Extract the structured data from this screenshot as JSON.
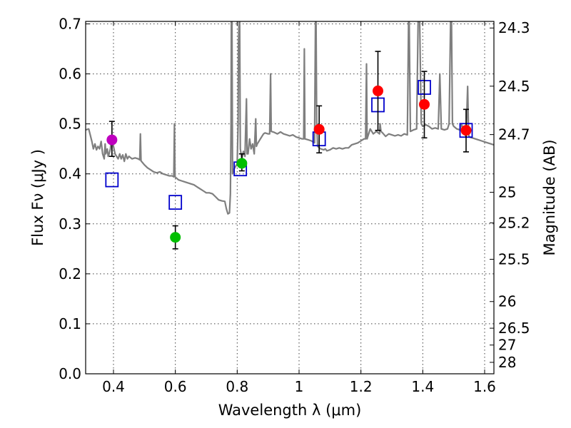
{
  "chart_data": {
    "type": "scatter",
    "xlabel": "Wavelength  λ (μm)",
    "ylabel": "Flux  Fν  (μJy )",
    "y2label": "Magnitude (AB)",
    "xlim": [
      0.31,
      1.63
    ],
    "ylim": [
      0.0,
      0.705
    ],
    "grid": true,
    "xticks": [
      0.4,
      0.6,
      0.8,
      1.0,
      1.2,
      1.4,
      1.6
    ],
    "xtick_labels": [
      "0.4",
      "0.6",
      "0.8",
      "1",
      "1.2",
      "1.4",
      "1.6"
    ],
    "yticks": [
      0.0,
      0.1,
      0.2,
      0.3,
      0.4,
      0.5,
      0.6,
      0.7
    ],
    "ytick_labels": [
      "0.0",
      "0.1",
      "0.2",
      "0.3",
      "0.4",
      "0.5",
      "0.6",
      "0.7"
    ],
    "mag_ticks": [
      {
        "label": "24.3",
        "flux": 0.6918
      },
      {
        "label": "24.5",
        "flux": 0.5754
      },
      {
        "label": "24.7",
        "flux": 0.4786
      },
      {
        "label": "25",
        "flux": 0.3631
      },
      {
        "label": "25.2",
        "flux": 0.302
      },
      {
        "label": "25.5",
        "flux": 0.2291
      },
      {
        "label": "26",
        "flux": 0.1445
      },
      {
        "label": "26.5",
        "flux": 0.0912
      },
      {
        "label": "27",
        "flux": 0.0575
      },
      {
        "label": "28",
        "flux": 0.0229
      }
    ],
    "series": [
      {
        "name": "model spectrum",
        "kind": "line",
        "color": "#7f7f7f",
        "points": [
          [
            0.31,
            0.488
          ],
          [
            0.32,
            0.49
          ],
          [
            0.33,
            0.465
          ],
          [
            0.335,
            0.45
          ],
          [
            0.34,
            0.46
          ],
          [
            0.345,
            0.448
          ],
          [
            0.35,
            0.455
          ],
          [
            0.355,
            0.45
          ],
          [
            0.36,
            0.465
          ],
          [
            0.365,
            0.44
          ],
          [
            0.37,
            0.43
          ],
          [
            0.373,
            0.46
          ],
          [
            0.375,
            0.44
          ],
          [
            0.38,
            0.45
          ],
          [
            0.383,
            0.435
          ],
          [
            0.386,
            0.44
          ],
          [
            0.39,
            0.45
          ],
          [
            0.393,
            0.47
          ],
          [
            0.396,
            0.468
          ],
          [
            0.4,
            0.455
          ],
          [
            0.405,
            0.44
          ],
          [
            0.41,
            0.435
          ],
          [
            0.415,
            0.43
          ],
          [
            0.42,
            0.44
          ],
          [
            0.425,
            0.43
          ],
          [
            0.43,
            0.438
          ],
          [
            0.435,
            0.425
          ],
          [
            0.44,
            0.44
          ],
          [
            0.445,
            0.43
          ],
          [
            0.45,
            0.435
          ],
          [
            0.46,
            0.43
          ],
          [
            0.47,
            0.432
          ],
          [
            0.48,
            0.43
          ],
          [
            0.485,
            0.428
          ],
          [
            0.487,
            0.48
          ],
          [
            0.489,
            0.426
          ],
          [
            0.5,
            0.418
          ],
          [
            0.51,
            0.412
          ],
          [
            0.52,
            0.408
          ],
          [
            0.53,
            0.404
          ],
          [
            0.54,
            0.402
          ],
          [
            0.55,
            0.404
          ],
          [
            0.56,
            0.4
          ],
          [
            0.57,
            0.398
          ],
          [
            0.58,
            0.396
          ],
          [
            0.59,
            0.396
          ],
          [
            0.595,
            0.394
          ],
          [
            0.597,
            0.5
          ],
          [
            0.599,
            0.394
          ],
          [
            0.61,
            0.388
          ],
          [
            0.62,
            0.386
          ],
          [
            0.63,
            0.384
          ],
          [
            0.64,
            0.382
          ],
          [
            0.65,
            0.38
          ],
          [
            0.66,
            0.378
          ],
          [
            0.67,
            0.374
          ],
          [
            0.68,
            0.37
          ],
          [
            0.69,
            0.366
          ],
          [
            0.7,
            0.362
          ],
          [
            0.71,
            0.362
          ],
          [
            0.72,
            0.36
          ],
          [
            0.73,
            0.354
          ],
          [
            0.74,
            0.348
          ],
          [
            0.75,
            0.346
          ],
          [
            0.76,
            0.345
          ],
          [
            0.765,
            0.33
          ],
          [
            0.77,
            0.32
          ],
          [
            0.775,
            0.322
          ],
          [
            0.778,
            0.36
          ],
          [
            0.78,
            0.5
          ],
          [
            0.781,
            0.705
          ],
          [
            0.783,
            0.705
          ],
          [
            0.785,
            0.4
          ],
          [
            0.79,
            0.41
          ],
          [
            0.795,
            0.415
          ],
          [
            0.8,
            0.42
          ],
          [
            0.803,
            0.5
          ],
          [
            0.804,
            0.66
          ],
          [
            0.806,
            0.705
          ],
          [
            0.808,
            0.705
          ],
          [
            0.81,
            0.45
          ],
          [
            0.815,
            0.43
          ],
          [
            0.82,
            0.445
          ],
          [
            0.825,
            0.435
          ],
          [
            0.83,
            0.55
          ],
          [
            0.832,
            0.44
          ],
          [
            0.835,
            0.44
          ],
          [
            0.84,
            0.47
          ],
          [
            0.845,
            0.45
          ],
          [
            0.85,
            0.46
          ],
          [
            0.855,
            0.44
          ],
          [
            0.86,
            0.51
          ],
          [
            0.862,
            0.455
          ],
          [
            0.865,
            0.46
          ],
          [
            0.87,
            0.465
          ],
          [
            0.875,
            0.47
          ],
          [
            0.88,
            0.475
          ],
          [
            0.885,
            0.48
          ],
          [
            0.89,
            0.482
          ],
          [
            0.9,
            0.48
          ],
          [
            0.905,
            0.48
          ],
          [
            0.908,
            0.6
          ],
          [
            0.91,
            0.485
          ],
          [
            0.92,
            0.483
          ],
          [
            0.93,
            0.48
          ],
          [
            0.94,
            0.484
          ],
          [
            0.95,
            0.48
          ],
          [
            0.96,
            0.478
          ],
          [
            0.97,
            0.476
          ],
          [
            0.98,
            0.478
          ],
          [
            0.99,
            0.474
          ],
          [
            1.0,
            0.472
          ],
          [
            1.01,
            0.47
          ],
          [
            1.015,
            0.47
          ],
          [
            1.017,
            0.65
          ],
          [
            1.019,
            0.47
          ],
          [
            1.03,
            0.468
          ],
          [
            1.04,
            0.466
          ],
          [
            1.05,
            0.462
          ],
          [
            1.053,
            0.705
          ],
          [
            1.055,
            0.705
          ],
          [
            1.057,
            0.5
          ],
          [
            1.06,
            0.455
          ],
          [
            1.07,
            0.45
          ],
          [
            1.08,
            0.448
          ],
          [
            1.085,
            0.45
          ],
          [
            1.09,
            0.446
          ],
          [
            1.1,
            0.448
          ],
          [
            1.11,
            0.452
          ],
          [
            1.12,
            0.45
          ],
          [
            1.13,
            0.452
          ],
          [
            1.14,
            0.45
          ],
          [
            1.15,
            0.452
          ],
          [
            1.16,
            0.452
          ],
          [
            1.17,
            0.458
          ],
          [
            1.18,
            0.46
          ],
          [
            1.19,
            0.462
          ],
          [
            1.2,
            0.466
          ],
          [
            1.21,
            0.47
          ],
          [
            1.215,
            0.47
          ],
          [
            1.218,
            0.62
          ],
          [
            1.22,
            0.47
          ],
          [
            1.23,
            0.49
          ],
          [
            1.24,
            0.48
          ],
          [
            1.25,
            0.485
          ],
          [
            1.26,
            0.48
          ],
          [
            1.262,
            0.5
          ],
          [
            1.265,
            0.485
          ],
          [
            1.27,
            0.482
          ],
          [
            1.28,
            0.475
          ],
          [
            1.29,
            0.48
          ],
          [
            1.3,
            0.478
          ],
          [
            1.31,
            0.476
          ],
          [
            1.32,
            0.478
          ],
          [
            1.33,
            0.476
          ],
          [
            1.34,
            0.48
          ],
          [
            1.35,
            0.478
          ],
          [
            1.352,
            0.58
          ],
          [
            1.354,
            0.705
          ],
          [
            1.356,
            0.705
          ],
          [
            1.358,
            0.6
          ],
          [
            1.36,
            0.485
          ],
          [
            1.37,
            0.488
          ],
          [
            1.38,
            0.49
          ],
          [
            1.385,
            0.705
          ],
          [
            1.39,
            0.705
          ],
          [
            1.395,
            0.5
          ],
          [
            1.4,
            0.495
          ],
          [
            1.41,
            0.498
          ],
          [
            1.42,
            0.495
          ],
          [
            1.43,
            0.49
          ],
          [
            1.44,
            0.492
          ],
          [
            1.45,
            0.49
          ],
          [
            1.455,
            0.6
          ],
          [
            1.46,
            0.49
          ],
          [
            1.47,
            0.488
          ],
          [
            1.48,
            0.49
          ],
          [
            1.485,
            0.5
          ],
          [
            1.49,
            0.705
          ],
          [
            1.493,
            0.705
          ],
          [
            1.496,
            0.5
          ],
          [
            1.5,
            0.495
          ],
          [
            1.51,
            0.49
          ],
          [
            1.52,
            0.488
          ],
          [
            1.525,
            0.5
          ],
          [
            1.53,
            0.49
          ],
          [
            1.535,
            0.48
          ],
          [
            1.54,
            0.475
          ],
          [
            1.545,
            0.575
          ],
          [
            1.548,
            0.48
          ],
          [
            1.55,
            0.474
          ],
          [
            1.56,
            0.472
          ],
          [
            1.57,
            0.47
          ],
          [
            1.58,
            0.468
          ],
          [
            1.59,
            0.466
          ],
          [
            1.6,
            0.464
          ],
          [
            1.61,
            0.462
          ],
          [
            1.62,
            0.46
          ],
          [
            1.63,
            0.458
          ]
        ]
      },
      {
        "name": "model photometry",
        "kind": "open-square",
        "color": "#0000cc",
        "points": [
          [
            0.395,
            0.388
          ],
          [
            0.6,
            0.343
          ],
          [
            0.81,
            0.41
          ],
          [
            1.065,
            0.47
          ],
          [
            1.255,
            0.538
          ],
          [
            1.405,
            0.573
          ],
          [
            1.54,
            0.487
          ]
        ]
      },
      {
        "name": "observed purple",
        "kind": "filled-circle",
        "color": "#bf00bf",
        "points": [
          [
            0.395,
            0.468
          ]
        ],
        "errors": [
          [
            0.435,
            0.505
          ]
        ]
      },
      {
        "name": "observed green",
        "kind": "filled-circle",
        "color": "#00bf00",
        "points": [
          [
            0.6,
            0.273
          ],
          [
            0.815,
            0.421
          ]
        ],
        "errors": [
          [
            0.25,
            0.296
          ],
          [
            0.406,
            0.44
          ]
        ]
      },
      {
        "name": "observed red",
        "kind": "filled-circle",
        "color": "#ff0000",
        "points": [
          [
            1.065,
            0.489
          ],
          [
            1.255,
            0.566
          ],
          [
            1.405,
            0.539
          ],
          [
            1.54,
            0.487
          ]
        ],
        "errors": [
          [
            0.442,
            0.536
          ],
          [
            0.487,
            0.645
          ],
          [
            0.472,
            0.605
          ],
          [
            0.444,
            0.529
          ]
        ]
      }
    ]
  }
}
